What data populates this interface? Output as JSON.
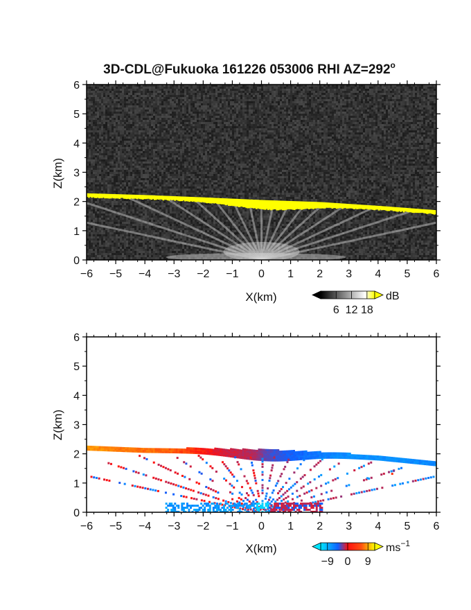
{
  "title": "3D-CDL@Fukuoka 161226 053006 RHI AZ=292",
  "title_superscript": "o",
  "chart_data": [
    {
      "type": "heatmap",
      "variable": "intensity",
      "xlabel": "X(km)",
      "ylabel": "Z(km)",
      "xlim": [
        -6,
        6
      ],
      "ylim": [
        0,
        6
      ],
      "xticks": [
        "-6",
        "-5",
        "-4",
        "-3",
        "-2",
        "-1",
        "0",
        "1",
        "2",
        "3",
        "4",
        "5",
        "6"
      ],
      "yticks": [
        "0",
        "1",
        "2",
        "3",
        "4",
        "5",
        "6"
      ],
      "background_color": "#1c1c1c",
      "colorbar": {
        "unit": "dB",
        "ticks": [
          "6",
          "12",
          "18"
        ],
        "tick_values": [
          6,
          12,
          18
        ],
        "range": [
          0,
          21
        ],
        "colors": [
          "#000000",
          "#ffffff",
          "#ffff00"
        ]
      },
      "layer_top_km": [
        [
          -6,
          2.28
        ],
        [
          -4,
          2.22
        ],
        [
          -2,
          2.14
        ],
        [
          0,
          2.05
        ],
        [
          2,
          1.98
        ],
        [
          4,
          1.85
        ],
        [
          6,
          1.7
        ]
      ],
      "layer_color": "#ffff00",
      "beam_elevations_deg": [
        12,
        18,
        25,
        33,
        42,
        52,
        64,
        78,
        90,
        102,
        116,
        128,
        138,
        147,
        155,
        162,
        168
      ]
    },
    {
      "type": "heatmap",
      "variable": "doppler_velocity",
      "xlabel": "X(km)",
      "ylabel": "Z(km)",
      "xlim": [
        -6,
        6
      ],
      "ylim": [
        0,
        6
      ],
      "xticks": [
        "-6",
        "-5",
        "-4",
        "-3",
        "-2",
        "-1",
        "0",
        "1",
        "2",
        "3",
        "4",
        "5",
        "6"
      ],
      "yticks": [
        "0",
        "1",
        "2",
        "3",
        "4",
        "5",
        "6"
      ],
      "background_color": "#ffffff",
      "colorbar": {
        "unit": "ms",
        "unit_superscript": "−1",
        "ticks": [
          "−9",
          "0",
          "9"
        ],
        "tick_values": [
          -9,
          0,
          9
        ],
        "range": [
          -12,
          12
        ],
        "colors": [
          "#00e5ff",
          "#1060ff",
          "#ff1010",
          "#ffff00"
        ]
      },
      "layer_top_km": [
        [
          -6,
          2.32
        ],
        [
          -4,
          2.24
        ],
        [
          -2,
          2.22
        ],
        [
          0,
          2.18
        ],
        [
          2,
          2.1
        ],
        [
          4,
          1.98
        ],
        [
          6,
          1.78
        ]
      ],
      "velocity_profile_ms": [
        [
          -6,
          8.5
        ],
        [
          -3,
          6.5
        ],
        [
          -1.5,
          3
        ],
        [
          -0.2,
          1
        ],
        [
          0.2,
          -2
        ],
        [
          1.5,
          -5
        ],
        [
          3,
          -7
        ],
        [
          6,
          -6.5
        ]
      ]
    }
  ]
}
